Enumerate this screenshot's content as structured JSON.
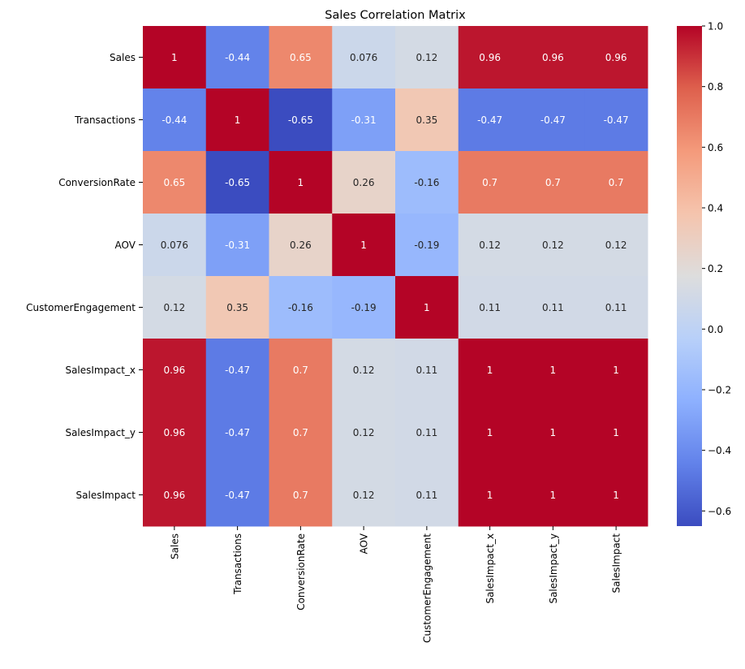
{
  "chart_data": {
    "type": "heatmap",
    "title": "Sales Correlation Matrix",
    "xlabel": "",
    "ylabel": "",
    "colormap": "coolwarm",
    "annotated": true,
    "x_labels": [
      "Sales",
      "Transactions",
      "ConversionRate",
      "AOV",
      "CustomerEngagement",
      "SalesImpact_x",
      "SalesImpact_y",
      "SalesImpact"
    ],
    "y_labels": [
      "Sales",
      "Transactions",
      "ConversionRate",
      "AOV",
      "CustomerEngagement",
      "SalesImpact_x",
      "SalesImpact_y",
      "SalesImpact"
    ],
    "values": [
      [
        1,
        -0.44,
        0.65,
        0.076,
        0.12,
        0.96,
        0.96,
        0.96
      ],
      [
        -0.44,
        1,
        -0.65,
        -0.31,
        0.35,
        -0.47,
        -0.47,
        -0.47
      ],
      [
        0.65,
        -0.65,
        1,
        0.26,
        -0.16,
        0.7,
        0.7,
        0.7
      ],
      [
        0.076,
        -0.31,
        0.26,
        1,
        -0.19,
        0.12,
        0.12,
        0.12
      ],
      [
        0.12,
        0.35,
        -0.16,
        -0.19,
        1,
        0.11,
        0.11,
        0.11
      ],
      [
        0.96,
        -0.47,
        0.7,
        0.12,
        0.11,
        1,
        1,
        1
      ],
      [
        0.96,
        -0.47,
        0.7,
        0.12,
        0.11,
        1,
        1,
        1
      ],
      [
        0.96,
        -0.47,
        0.7,
        0.12,
        0.11,
        1,
        1,
        1
      ]
    ],
    "value_labels": [
      [
        "1",
        "-0.44",
        "0.65",
        "0.076",
        "0.12",
        "0.96",
        "0.96",
        "0.96"
      ],
      [
        "-0.44",
        "1",
        "-0.65",
        "-0.31",
        "0.35",
        "-0.47",
        "-0.47",
        "-0.47"
      ],
      [
        "0.65",
        "-0.65",
        "1",
        "0.26",
        "-0.16",
        "0.7",
        "0.7",
        "0.7"
      ],
      [
        "0.076",
        "-0.31",
        "0.26",
        "1",
        "-0.19",
        "0.12",
        "0.12",
        "0.12"
      ],
      [
        "0.12",
        "0.35",
        "-0.16",
        "-0.19",
        "1",
        "0.11",
        "0.11",
        "0.11"
      ],
      [
        "0.96",
        "-0.47",
        "0.7",
        "0.12",
        "0.11",
        "1",
        "1",
        "1"
      ],
      [
        "0.96",
        "-0.47",
        "0.7",
        "0.12",
        "0.11",
        "1",
        "1",
        "1"
      ],
      [
        "0.96",
        "-0.47",
        "0.7",
        "0.12",
        "0.11",
        "1",
        "1",
        "1"
      ]
    ],
    "colorbar": {
      "vmin": -0.65,
      "vmax": 1.0,
      "ticks": [
        -0.6,
        -0.4,
        -0.2,
        0.0,
        0.2,
        0.4,
        0.6,
        0.8,
        1.0
      ],
      "tick_labels": [
        "−0.6",
        "−0.4",
        "−0.2",
        "0.0",
        "0.2",
        "0.4",
        "0.6",
        "0.8",
        "1.0"
      ],
      "placement": "right"
    },
    "grid": false,
    "legend": "none"
  }
}
